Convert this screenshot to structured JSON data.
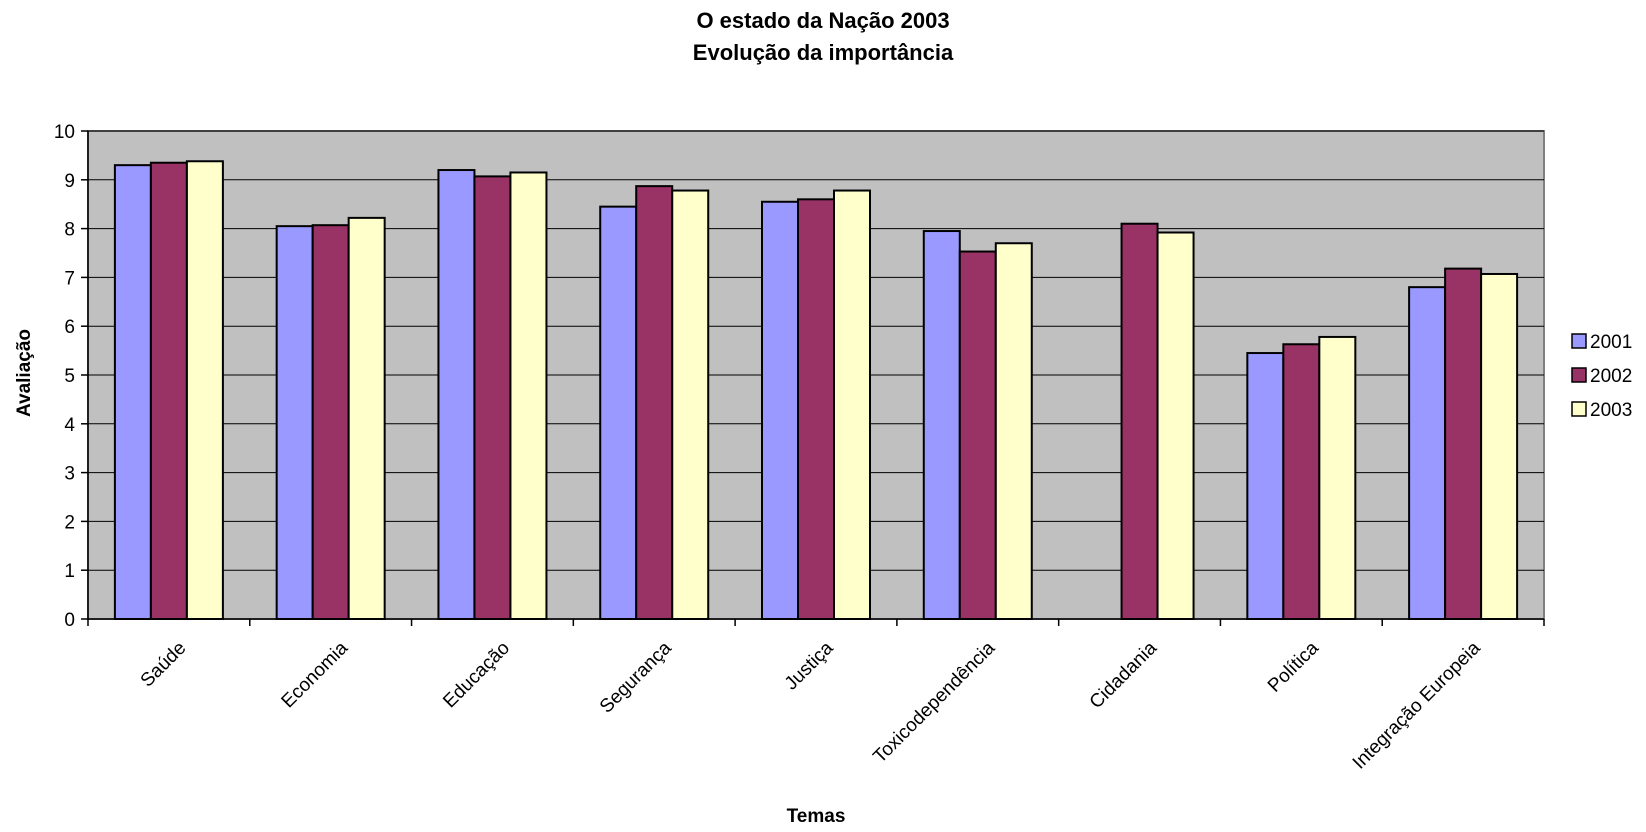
{
  "chart_data": {
    "type": "bar",
    "title": "O estado da Nação 2003",
    "subtitle": "Evolução da importância",
    "xlabel": "Temas",
    "ylabel": "Avaliação",
    "ylim": [
      0,
      10
    ],
    "yticks": [
      0,
      1,
      2,
      3,
      4,
      5,
      6,
      7,
      8,
      9,
      10
    ],
    "grid": true,
    "legend_position": "right",
    "plot_background": "#C0C0C0",
    "categories": [
      "Saúde",
      "Economia",
      "Educação",
      "Segurança",
      "Justiça",
      "Toxicodependência",
      "Cidadania",
      "Política",
      "Integração Europeia"
    ],
    "series": [
      {
        "name": "2001",
        "color": "#9999FF",
        "values": [
          9.3,
          8.05,
          9.2,
          8.45,
          8.55,
          7.95,
          null,
          5.45,
          6.8
        ]
      },
      {
        "name": "2002",
        "color": "#993366",
        "values": [
          9.35,
          8.07,
          9.07,
          8.87,
          8.6,
          7.53,
          8.1,
          5.63,
          7.18
        ]
      },
      {
        "name": "2003",
        "color": "#FFFFCC",
        "values": [
          9.38,
          8.22,
          9.15,
          8.78,
          8.78,
          7.7,
          7.92,
          5.78,
          7.07
        ]
      }
    ]
  }
}
